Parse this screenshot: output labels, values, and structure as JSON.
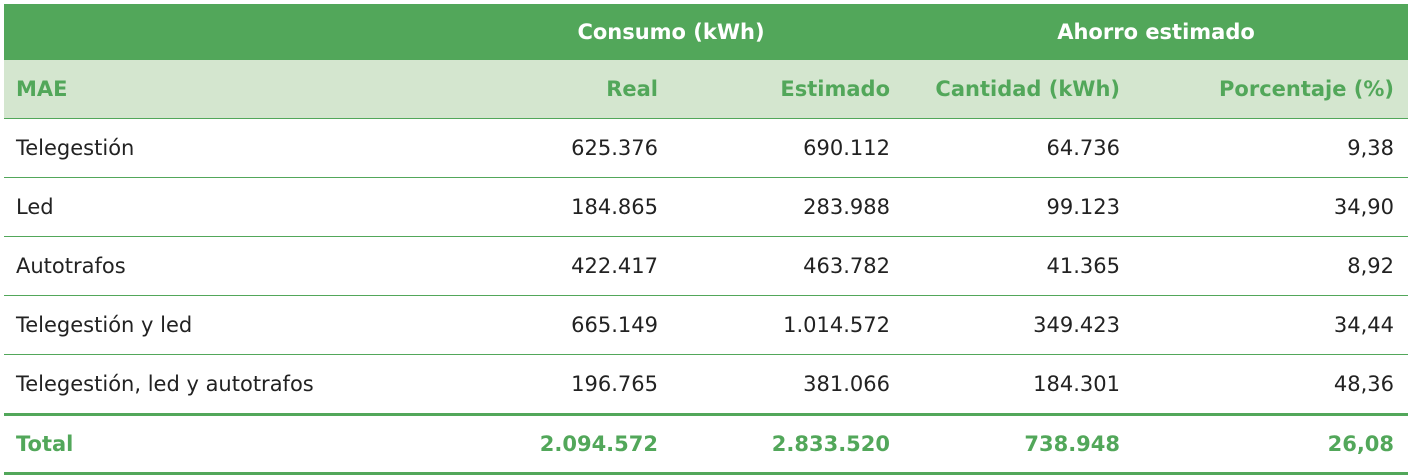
{
  "colors": {
    "green": "#52a75a",
    "light_green": "#d4e6cf"
  },
  "groups": {
    "consumo": "Consumo (kWh)",
    "ahorro": "Ahorro estimado"
  },
  "headers": [
    "MAE",
    "Real",
    "Estimado",
    "Cantidad (kWh)",
    "Porcentaje (%)"
  ],
  "rows": [
    [
      "Telegestión",
      "625.376",
      "690.112",
      "64.736",
      "9,38"
    ],
    [
      "Led",
      "184.865",
      "283.988",
      "99.123",
      "34,90"
    ],
    [
      "Autotrafos",
      "422.417",
      "463.782",
      "41.365",
      "8,92"
    ],
    [
      "Telegestión y led",
      "665.149",
      "1.014.572",
      "349.423",
      "34,44"
    ],
    [
      "Telegestión, led y autotrafos",
      "196.765",
      "381.066",
      "184.301",
      "48,36"
    ]
  ],
  "total": [
    "Total",
    "2.094.572",
    "2.833.520",
    "738.948",
    "26,08"
  ]
}
